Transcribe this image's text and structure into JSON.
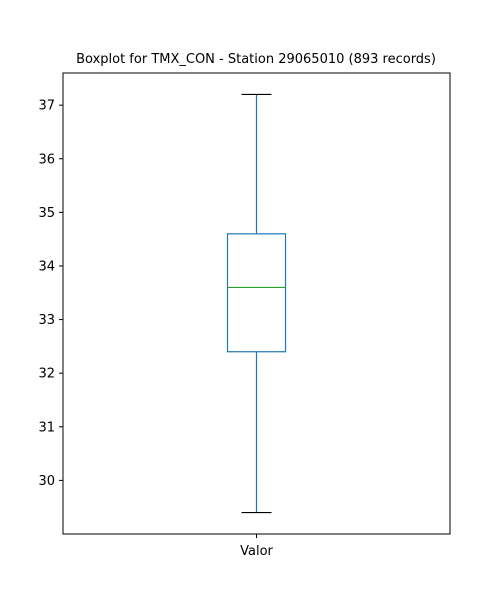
{
  "chart_data": {
    "type": "box",
    "title": "Boxplot for TMX_CON - Station 29065010 (893 records)",
    "xlabel": "",
    "ylabel": "",
    "categories": [
      "Valor"
    ],
    "boxes": [
      {
        "category": "Valor",
        "whisker_low": 29.4,
        "q1": 32.4,
        "median": 33.6,
        "q3": 34.6,
        "whisker_high": 37.2
      }
    ],
    "ylim": [
      29.0,
      37.6
    ],
    "yticks": [
      30,
      31,
      32,
      33,
      34,
      35,
      36,
      37
    ],
    "grid": false,
    "colors": {
      "box": "#1f77b4",
      "median": "#2ca02c",
      "cap": "#000000",
      "frame": "#000000"
    }
  }
}
